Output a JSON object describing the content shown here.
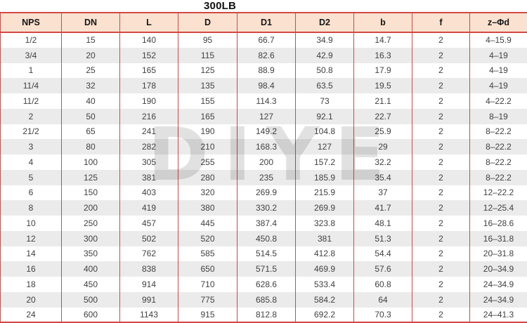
{
  "title": "300LB",
  "watermark": "DIYE",
  "colors": {
    "border_red": "#d34745",
    "header_bg": "#fae1d0",
    "stripe": "#ebebeb"
  },
  "chart_data": {
    "type": "table",
    "title": "300LB",
    "columns": [
      "NPS",
      "DN",
      "L",
      "D",
      "D1",
      "D2",
      "b",
      "f",
      "z–Φd"
    ],
    "rows": [
      [
        "1/2",
        "15",
        "140",
        "95",
        "66.7",
        "34.9",
        "14.7",
        "2",
        "4–15.9"
      ],
      [
        "3/4",
        "20",
        "152",
        "115",
        "82.6",
        "42.9",
        "16.3",
        "2",
        "4–19"
      ],
      [
        "1",
        "25",
        "165",
        "125",
        "88.9",
        "50.8",
        "17.9",
        "2",
        "4–19"
      ],
      [
        "11/4",
        "32",
        "178",
        "135",
        "98.4",
        "63.5",
        "19.5",
        "2",
        "4–19"
      ],
      [
        "11/2",
        "40",
        "190",
        "155",
        "114.3",
        "73",
        "21.1",
        "2",
        "4–22.2"
      ],
      [
        "2",
        "50",
        "216",
        "165",
        "127",
        "92.1",
        "22.7",
        "2",
        "8–19"
      ],
      [
        "21/2",
        "65",
        "241",
        "190",
        "149.2",
        "104.8",
        "25.9",
        "2",
        "8–22.2"
      ],
      [
        "3",
        "80",
        "282",
        "210",
        "168.3",
        "127",
        "29",
        "2",
        "8–22.2"
      ],
      [
        "4",
        "100",
        "305",
        "255",
        "200",
        "157.2",
        "32.2",
        "2",
        "8–22.2"
      ],
      [
        "5",
        "125",
        "381",
        "280",
        "235",
        "185.9",
        "35.4",
        "2",
        "8–22.2"
      ],
      [
        "6",
        "150",
        "403",
        "320",
        "269.9",
        "215.9",
        "37",
        "2",
        "12–22.2"
      ],
      [
        "8",
        "200",
        "419",
        "380",
        "330.2",
        "269.9",
        "41.7",
        "2",
        "12–25.4"
      ],
      [
        "10",
        "250",
        "457",
        "445",
        "387.4",
        "323.8",
        "48.1",
        "2",
        "16–28.6"
      ],
      [
        "12",
        "300",
        "502",
        "520",
        "450.8",
        "381",
        "51.3",
        "2",
        "16–31.8"
      ],
      [
        "14",
        "350",
        "762",
        "585",
        "514.5",
        "412.8",
        "54.4",
        "2",
        "20–31.8"
      ],
      [
        "16",
        "400",
        "838",
        "650",
        "571.5",
        "469.9",
        "57.6",
        "2",
        "20–34.9"
      ],
      [
        "18",
        "450",
        "914",
        "710",
        "628.6",
        "533.4",
        "60.8",
        "2",
        "24–34.9"
      ],
      [
        "20",
        "500",
        "991",
        "775",
        "685.8",
        "584.2",
        "64",
        "2",
        "24–34.9"
      ],
      [
        "24",
        "600",
        "1143",
        "915",
        "812.8",
        "692.2",
        "70.3",
        "2",
        "24–41.3"
      ]
    ]
  }
}
